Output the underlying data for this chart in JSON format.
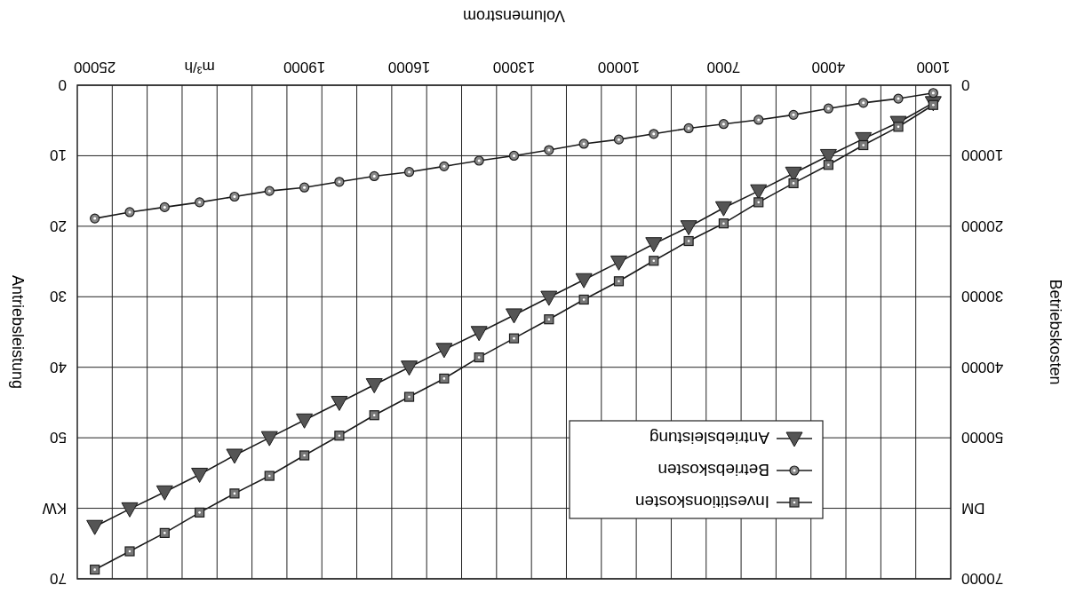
{
  "chart_data": {
    "type": "line",
    "xlabel": "Volumenstrom",
    "ylabel": "Antriebsleistung",
    "y2label": "Betriebskosten",
    "categories": [
      "25000",
      null,
      null,
      "m³/h",
      null,
      null,
      "19000",
      null,
      null,
      "16000",
      null,
      null,
      "13000",
      null,
      null,
      "10000",
      null,
      null,
      "7000",
      null,
      null,
      "4000",
      null,
      null,
      "1000"
    ],
    "ylim": [
      70,
      0
    ],
    "yticks": [
      0,
      10,
      20,
      30,
      40,
      50,
      {
        "value": 60,
        "label": "KW"
      },
      70
    ],
    "y2lim": [
      70000,
      0
    ],
    "y2ticks": [
      0,
      10000,
      20000,
      30000,
      40000,
      50000,
      {
        "value": 60000,
        "label": "DM"
      },
      70000
    ],
    "grid": true,
    "legend": "bottom right",
    "line_style": "solid",
    "series": [
      {
        "name": "Antriebsleistung",
        "color": "#1a1a1a",
        "marker": "triangle",
        "values": [
          62.6,
          60.1,
          57.7,
          55.2,
          52.5,
          50.0,
          47.5,
          45.0,
          42.5,
          40.0,
          37.5,
          35.1,
          32.6,
          30.1,
          27.6,
          25.1,
          22.5,
          20.1,
          17.4,
          15.0,
          12.5,
          10.0,
          7.6,
          5.3,
          2.5
        ]
      },
      {
        "name": "Betriebskosten",
        "color": "#1a1a1a",
        "marker": "circle",
        "axis": "y2",
        "values": [
          18900,
          18000,
          17300,
          16600,
          15800,
          15000,
          14500,
          13700,
          12900,
          12300,
          11500,
          10700,
          10000,
          9200,
          8300,
          7700,
          6900,
          6100,
          5500,
          4900,
          4200,
          3300,
          2500,
          1900,
          1100
        ]
      },
      {
        "name": "Investitionskosten",
        "color": "#1a1a1a",
        "marker": "square",
        "axis": "y2",
        "values": [
          68700,
          66100,
          63500,
          60600,
          57900,
          55400,
          52500,
          49700,
          46800,
          44200,
          41600,
          38600,
          35900,
          33200,
          30400,
          27800,
          24900,
          22100,
          19600,
          16600,
          13900,
          11300,
          8500,
          5900,
          2800
        ]
      }
    ]
  }
}
